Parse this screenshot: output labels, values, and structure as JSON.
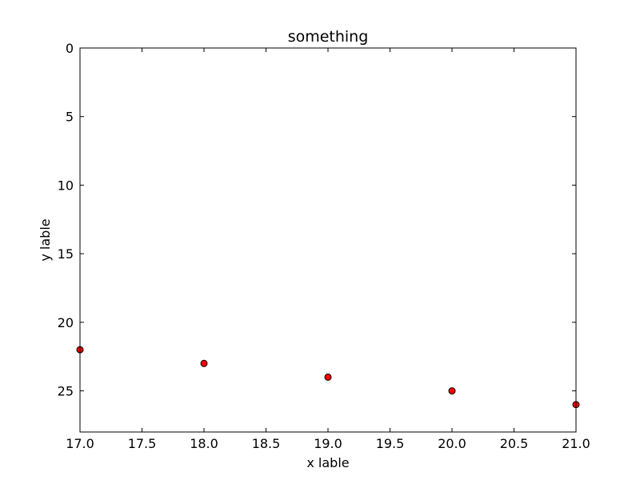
{
  "chart_data": {
    "type": "scatter",
    "title": "something",
    "xlabel": "x lable",
    "ylabel": "y lable",
    "xlim": [
      17.0,
      21.0
    ],
    "ylim": [
      28,
      0
    ],
    "y_inverted": true,
    "x_ticks": [
      17.0,
      17.5,
      18.0,
      18.5,
      19.0,
      19.5,
      20.0,
      20.5,
      21.0
    ],
    "x_tick_labels": [
      "17.0",
      "17.5",
      "18.0",
      "18.5",
      "19.0",
      "19.5",
      "20.0",
      "20.5",
      "21.0"
    ],
    "y_ticks": [
      0,
      5,
      10,
      15,
      20,
      25
    ],
    "y_tick_labels": [
      "0",
      "5",
      "10",
      "15",
      "20",
      "25"
    ],
    "grid": false,
    "marker_color": "#ff0000",
    "marker_edge_color": "#000000",
    "points": [
      {
        "x": 17,
        "y": 22
      },
      {
        "x": 18,
        "y": 23
      },
      {
        "x": 19,
        "y": 24
      },
      {
        "x": 20,
        "y": 25
      },
      {
        "x": 21,
        "y": 26
      }
    ]
  }
}
